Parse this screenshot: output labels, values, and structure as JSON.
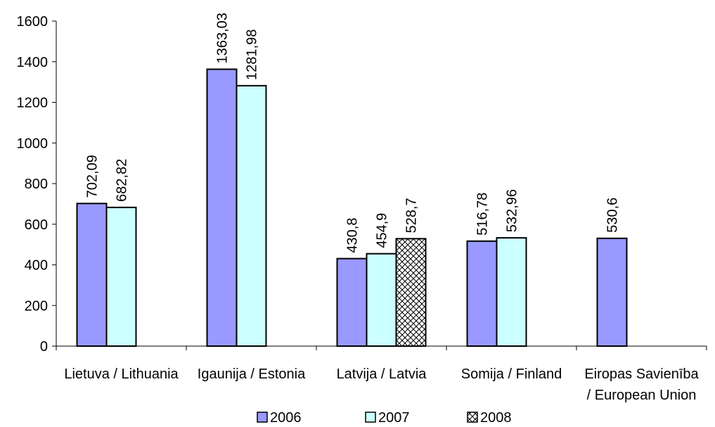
{
  "chart_data": {
    "type": "bar",
    "title": "",
    "xlabel": "",
    "ylabel": "",
    "ylim": [
      0,
      1600
    ],
    "yticks": [
      0,
      200,
      400,
      600,
      800,
      1000,
      1200,
      1400,
      1600
    ],
    "grid": false,
    "legend_position": "bottom",
    "categories": [
      [
        "Lietuva / Lithuania"
      ],
      [
        "Igaunija / Estonia"
      ],
      [
        "Latvija / Latvia"
      ],
      [
        "Somija / Finland"
      ],
      [
        "Eiropas Savienība",
        "/ European Union"
      ]
    ],
    "series": [
      {
        "name": "2006",
        "color": "#9999ff",
        "pattern": "solid",
        "values": [
          702.09,
          1363.03,
          430.8,
          516.78,
          530.6
        ],
        "labels": [
          "702,09",
          "1363,03",
          "430,8",
          "516,78",
          "530,6"
        ]
      },
      {
        "name": "2007",
        "color": "#ccffff",
        "pattern": "solid",
        "values": [
          682.82,
          1281.98,
          454.9,
          532.96,
          null
        ],
        "labels": [
          "682,82",
          "1281,98",
          "454,9",
          "532,96",
          null
        ]
      },
      {
        "name": "2008",
        "color": "#ffffff",
        "pattern": "crosshatch",
        "values": [
          null,
          null,
          528.7,
          null,
          null
        ],
        "labels": [
          null,
          null,
          "528,7",
          null,
          null
        ]
      }
    ]
  }
}
